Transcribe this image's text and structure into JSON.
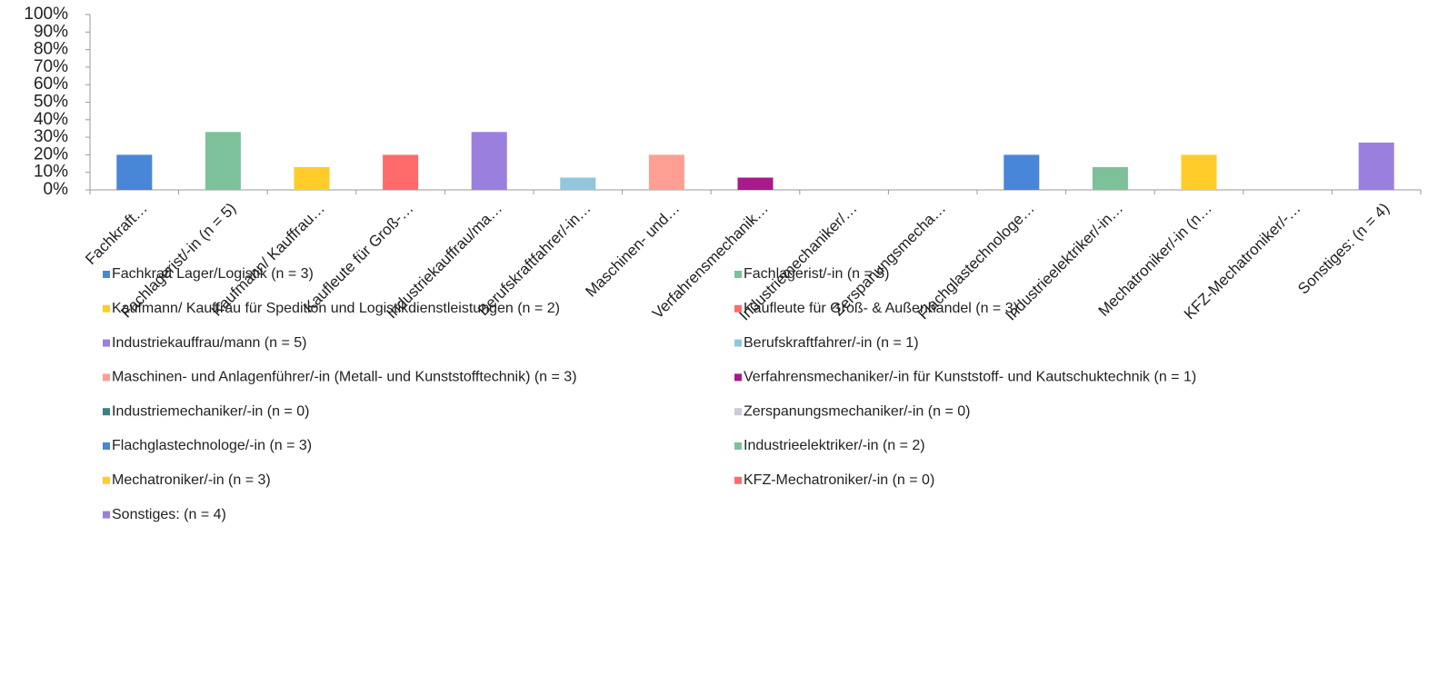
{
  "chart_data": {
    "type": "bar",
    "categories": [
      "Fachkraft…",
      "Fachlagerist/-in (n = 5)",
      "Kaufmann/ Kauffrau…",
      "Kaufleute für Groß-…",
      "Industriekauffrau/ma…",
      "Berufskraftfahrer/-in…",
      "Maschinen- und…",
      "Verfahrensmechanik…",
      "Industriemechaniker/…",
      "Zerspanungsmecha…",
      "Flachglastechnologe…",
      "Industrieelektriker/-in…",
      "Mechatroniker/-in (n…",
      "KFZ-Mechatroniker/-…",
      "Sonstiges: (n = 4)"
    ],
    "values": [
      20,
      33,
      13,
      20,
      33,
      7,
      20,
      7,
      0,
      0,
      20,
      13,
      20,
      0,
      27
    ],
    "colors": [
      "#4a86d8",
      "#7dc19a",
      "#ffcc29",
      "#ff6b6b",
      "#9b7fdf",
      "#92c5de",
      "#ff9f94",
      "#a8198c",
      "#3d7f7f",
      "#c8ccd8",
      "#4a86d8",
      "#7dc19a",
      "#ffcc29",
      "#ff6b6b",
      "#9b7fdf"
    ],
    "legend": [
      "Fachkraft Lager/Logistik (n = 3)",
      "Fachlagerist/-in (n = 5)",
      "Kaufmann/ Kauffrau für Spedition und Logistikdienstleistungen (n = 2)",
      "Kaufleute für Groß- & Außenhandel (n = 3)",
      "Industriekauffrau/mann (n = 5)",
      "Berufskraftfahrer/-in (n = 1)",
      "Maschinen- und Anlagenführer/-in (Metall- und Kunststofftechnik) (n = 3)",
      "Verfahrensmechaniker/-in für Kunststoff- und Kautschuktechnik (n = 1)",
      "Industriemechaniker/-in (n = 0)",
      "Zerspanungsmechaniker/-in (n = 0)",
      "Flachglastechnologe/-in (n = 3)",
      "Industrieelektriker/-in (n = 2)",
      "Mechatroniker/-in (n = 3)",
      "KFZ-Mechatroniker/-in (n = 0)",
      "Sonstiges: (n = 4)"
    ],
    "ylim": [
      0,
      100
    ],
    "yticks": [
      {
        "value": 0,
        "label": "0%"
      },
      {
        "value": 10,
        "label": "10%"
      },
      {
        "value": 20,
        "label": "20%"
      },
      {
        "value": 30,
        "label": "30%"
      },
      {
        "value": 40,
        "label": "40%"
      },
      {
        "value": 50,
        "label": "50%"
      },
      {
        "value": 60,
        "label": "60%"
      },
      {
        "value": 70,
        "label": "70%"
      },
      {
        "value": 80,
        "label": "80%"
      },
      {
        "value": 90,
        "label": "90%"
      },
      {
        "value": 100,
        "label": "100%"
      }
    ],
    "grid": false
  }
}
